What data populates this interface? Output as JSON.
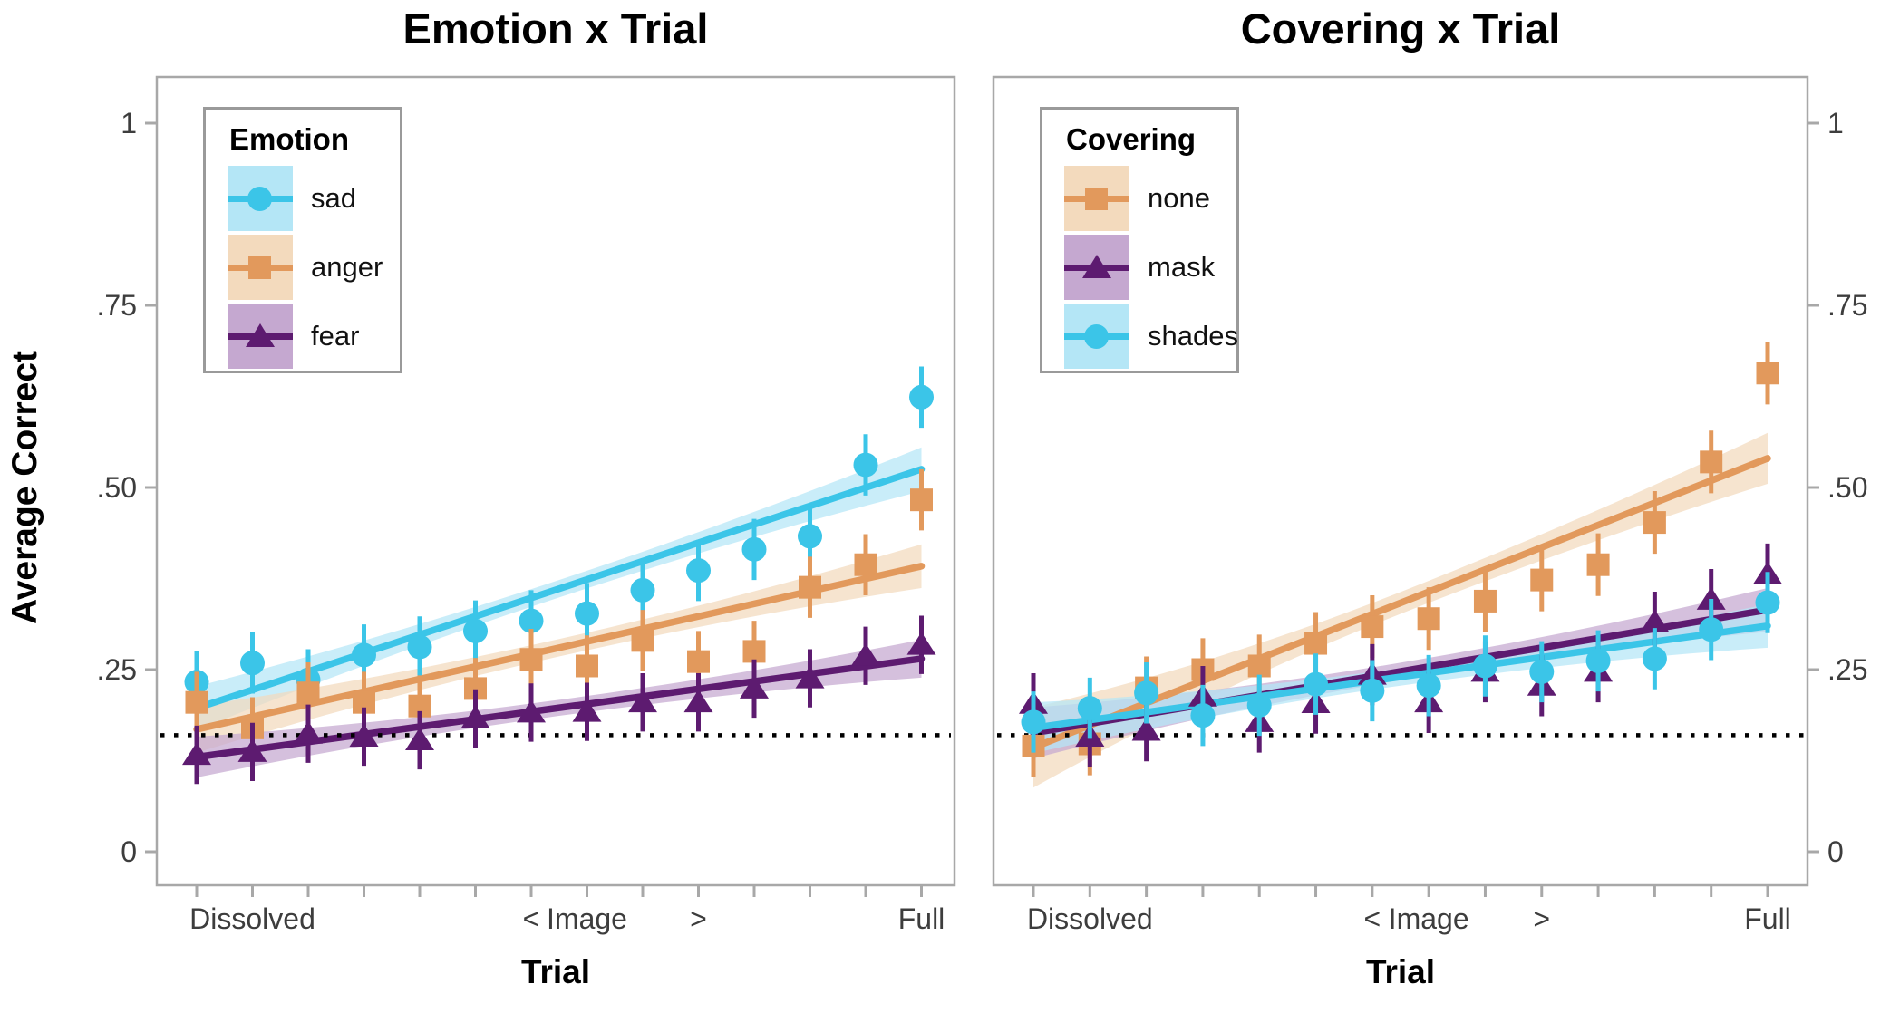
{
  "axes": {
    "y_label": "Average Correct",
    "x_label": "Trial",
    "y_tick_labels": [
      "1",
      ".75",
      ".50",
      ".25",
      "0"
    ],
    "y_tick_values": [
      1,
      0.75,
      0.5,
      0.25,
      0
    ],
    "x_tick_count": 14,
    "x_tick_labels": {
      "2": "Dissolved",
      "7": "<",
      "8": "Image",
      "10": ">",
      "14": "Full"
    },
    "y_range": [
      0,
      1
    ]
  },
  "reference_line": 0.16,
  "colors": {
    "cyan": {
      "main": "#3bc5e8",
      "band": "#b4e6f6"
    },
    "orange": {
      "main": "#e2995c",
      "band": "#f3dabd"
    },
    "purple": {
      "main": "#5d1b70",
      "band": "#c5a8d0"
    },
    "axis_gray": "#a8a8a8",
    "text_gray": "#3d3d3d",
    "reference_black": "#000000"
  },
  "chart_data": [
    {
      "panel": "left",
      "type": "scatter",
      "title": "Emotion x Trial",
      "legend_title": "Emotion",
      "x": [
        1,
        2,
        3,
        4,
        5,
        6,
        7,
        8,
        9,
        10,
        11,
        12,
        13,
        14
      ],
      "series": [
        {
          "name": "sad",
          "marker": "circle",
          "color": "cyan",
          "values": [
            0.233,
            0.259,
            0.236,
            0.27,
            0.281,
            0.303,
            0.317,
            0.327,
            0.359,
            0.386,
            0.415,
            0.433,
            0.531,
            0.624
          ],
          "err": 0.042,
          "trend": {
            "start": 0.197,
            "end": 0.525
          },
          "band": [
            0.03,
            0.012,
            0.03
          ]
        },
        {
          "name": "anger",
          "marker": "square",
          "color": "orange",
          "values": [
            0.205,
            0.17,
            0.218,
            0.205,
            0.2,
            0.224,
            0.264,
            0.255,
            0.29,
            0.261,
            0.275,
            0.363,
            0.394,
            0.483
          ],
          "err": 0.042,
          "trend": {
            "start": 0.168,
            "end": 0.392
          },
          "band": [
            0.032,
            0.012,
            0.03
          ]
        },
        {
          "name": "fear",
          "marker": "triangle",
          "color": "purple",
          "values": [
            0.133,
            0.137,
            0.162,
            0.158,
            0.153,
            0.183,
            0.191,
            0.192,
            0.205,
            0.205,
            0.224,
            0.238,
            0.269,
            0.284
          ],
          "err": 0.04,
          "trend": {
            "start": 0.13,
            "end": 0.265
          },
          "band": [
            0.028,
            0.011,
            0.026
          ]
        }
      ]
    },
    {
      "panel": "right",
      "type": "scatter",
      "title": "Covering x Trial",
      "legend_title": "Covering",
      "x": [
        1,
        2,
        3,
        4,
        5,
        6,
        7,
        8,
        9,
        10,
        11,
        12,
        13,
        14
      ],
      "series": [
        {
          "name": "none",
          "marker": "square",
          "color": "orange",
          "values": [
            0.145,
            0.148,
            0.225,
            0.25,
            0.255,
            0.286,
            0.309,
            0.32,
            0.344,
            0.373,
            0.394,
            0.452,
            0.535,
            0.657
          ],
          "err": 0.043,
          "trend": {
            "start": 0.143,
            "end": 0.54
          },
          "band": [
            0.055,
            0.015,
            0.035
          ]
        },
        {
          "name": "mask",
          "marker": "triangle",
          "color": "purple",
          "values": [
            0.203,
            0.158,
            0.166,
            0.213,
            0.178,
            0.204,
            0.243,
            0.205,
            0.247,
            0.228,
            0.247,
            0.315,
            0.346,
            0.381
          ],
          "err": 0.042,
          "trend": {
            "start": 0.163,
            "end": 0.332
          },
          "band": [
            0.035,
            0.012,
            0.03
          ]
        },
        {
          "name": "shades",
          "marker": "circle",
          "color": "cyan",
          "values": [
            0.178,
            0.197,
            0.218,
            0.187,
            0.201,
            0.23,
            0.221,
            0.228,
            0.255,
            0.247,
            0.262,
            0.265,
            0.305,
            0.342
          ],
          "err": 0.042,
          "trend": {
            "start": 0.17,
            "end": 0.31
          },
          "band": [
            0.035,
            0.012,
            0.03
          ]
        }
      ]
    }
  ]
}
